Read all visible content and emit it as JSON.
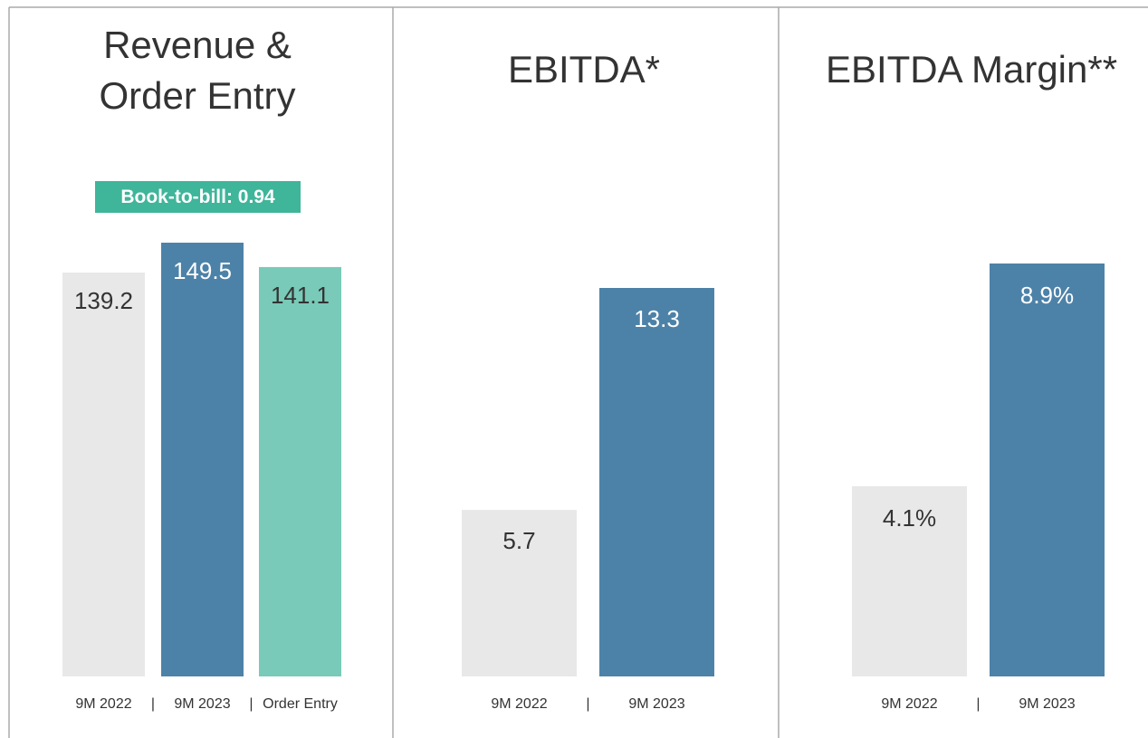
{
  "chart_data": [
    {
      "type": "bar",
      "title": "Revenue & Order Entry",
      "annotation": "Book-to-bill: 0.94",
      "categories": [
        "9M 2022",
        "9M 2023",
        "Order Entry"
      ],
      "values": [
        139.2,
        149.5,
        141.1
      ],
      "colors": [
        "#e8e8e8",
        "#4d82a8",
        "#79cab8"
      ]
    },
    {
      "type": "bar",
      "title": "EBITDA*",
      "categories": [
        "9M 2022",
        "9M 2023"
      ],
      "values": [
        5.7,
        13.3
      ],
      "colors": [
        "#e8e8e8",
        "#4d82a8"
      ]
    },
    {
      "type": "bar",
      "title": "EBITDA Margin**",
      "categories": [
        "9M 2022",
        "9M 2023"
      ],
      "values": [
        4.1,
        8.9
      ],
      "value_labels": [
        "4.1%",
        "8.9%"
      ],
      "colors": [
        "#e8e8e8",
        "#4d82a8"
      ]
    }
  ]
}
